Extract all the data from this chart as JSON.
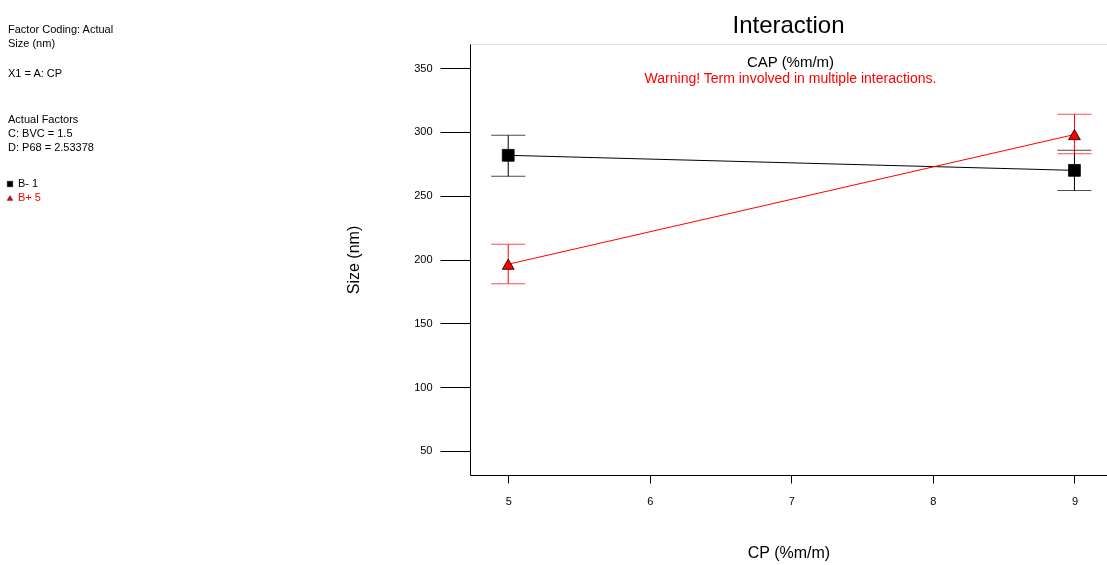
{
  "chart_data": {
    "type": "line",
    "title": "Interaction",
    "xlabel": "CP (%m/m)",
    "ylabel": "Size (nm)",
    "x": [
      5,
      9
    ],
    "series": [
      {
        "name": "B- 1",
        "color": "#000000",
        "marker": "square",
        "values": [
          281.7,
          269.9
        ],
        "errors": [
          [
            265.2,
            297.4
          ],
          [
            254.2,
            285.6
          ]
        ]
      },
      {
        "name": "B+ 5",
        "color": "#ff0000",
        "marker": "triangle",
        "values": [
          196.3,
          298
        ],
        "errors": [
          [
            181,
            212
          ],
          [
            283,
            314
          ]
        ]
      }
    ],
    "xlim": [
      4.73,
      9.23
    ],
    "xticks": [
      5,
      6,
      7,
      8,
      9
    ],
    "ylim": [
      31,
      369
    ],
    "yticks": [
      50,
      100,
      150,
      200,
      250,
      300,
      350
    ],
    "grid": false,
    "legend": "left",
    "annotations": [
      "Factor Coding: Actual",
      "Size (nm)",
      "X1 = A: CP",
      "Actual Factors",
      "C: BVC = 1.5",
      "D: P68 = 2.53378",
      "CAP (%m/m)",
      "Warning! Term involved in multiple interactions."
    ]
  }
}
